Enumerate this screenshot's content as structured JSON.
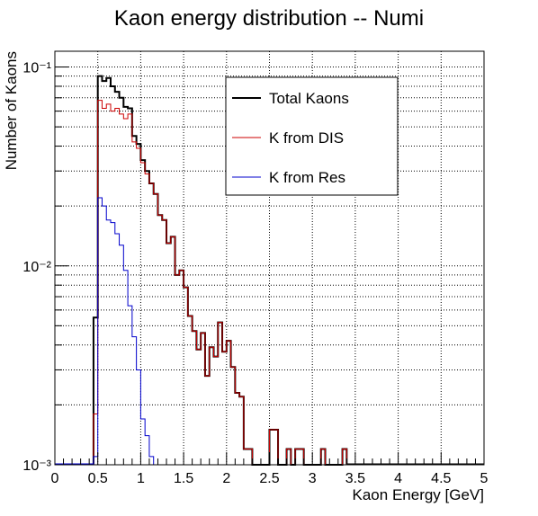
{
  "chart_data": {
    "type": "line",
    "title": "Kaon energy distribution -- Numi",
    "xlabel": "Kaon Energy [GeV]",
    "ylabel": "Number of Kaons",
    "x_scale": "linear",
    "y_scale": "log",
    "xlim": [
      0,
      5
    ],
    "ylim": [
      0.001,
      0.12
    ],
    "grid": true,
    "legend_position": "top-right",
    "x_ticks": [
      "0",
      "0.5",
      "1",
      "1.5",
      "2",
      "2.5",
      "3",
      "3.5",
      "4",
      "4.5",
      "5"
    ],
    "y_tick_labels": {
      "1e-3": "10⁻³",
      "1e-2": "10⁻²",
      "1e-1": "10⁻¹"
    },
    "bin_width": 0.05,
    "series": [
      {
        "name": "Total Kaons",
        "color": "#000000",
        "x": [
          0.45,
          0.5,
          0.55,
          0.6,
          0.65,
          0.7,
          0.75,
          0.8,
          0.85,
          0.9,
          0.95,
          1.0,
          1.05,
          1.1,
          1.15,
          1.2,
          1.25,
          1.3,
          1.35,
          1.4,
          1.45,
          1.5,
          1.55,
          1.6,
          1.65,
          1.7,
          1.75,
          1.8,
          1.85,
          1.9,
          1.95,
          2.0,
          2.05,
          2.1,
          2.15,
          2.2,
          2.25,
          2.3,
          2.35,
          2.4,
          2.45,
          2.5,
          2.55,
          2.6,
          2.65,
          2.7,
          2.75,
          2.8,
          2.85,
          2.9,
          2.95,
          3.0,
          3.05,
          3.1,
          3.15,
          3.2,
          3.25,
          3.3,
          3.35
        ],
        "values": [
          0.0055,
          0.09,
          0.085,
          0.088,
          0.08,
          0.075,
          0.07,
          0.063,
          0.062,
          0.045,
          0.041,
          0.034,
          0.03,
          0.026,
          0.023,
          0.018,
          0.017,
          0.013,
          0.014,
          0.009,
          0.0095,
          0.0078,
          0.0056,
          0.0047,
          0.0038,
          0.0046,
          0.0028,
          0.0039,
          0.0035,
          0.0052,
          0.0037,
          0.0042,
          0.0031,
          0.0023,
          0.0022,
          0.0012,
          0.0012,
          0.001,
          0.001,
          0.001,
          0.001,
          0.0015,
          0.0015,
          0.001,
          0.001,
          0.0012,
          0.001,
          0.0012,
          0.0012,
          0.001,
          0.001,
          0.001,
          0.001,
          0.0012,
          0.001,
          0.001,
          0.001,
          0.001,
          0.0012
        ]
      },
      {
        "name": "K from DIS",
        "color": "#cc0000",
        "x": [
          0.45,
          0.5,
          0.55,
          0.6,
          0.65,
          0.7,
          0.75,
          0.8,
          0.85,
          0.9,
          0.95,
          1.0,
          1.05,
          1.1,
          1.15,
          1.2,
          1.25,
          1.3,
          1.35,
          1.4,
          1.45,
          1.5,
          1.55,
          1.6,
          1.65,
          1.7,
          1.75,
          1.8,
          1.85,
          1.9,
          1.95,
          2.0,
          2.05,
          2.1,
          2.15,
          2.2,
          2.25,
          2.3,
          2.35,
          2.4,
          2.45,
          2.5,
          2.55,
          2.6,
          2.65,
          2.7,
          2.75,
          2.8,
          2.85,
          2.9,
          2.95,
          3.0,
          3.05,
          3.1,
          3.15,
          3.2,
          3.25,
          3.3,
          3.35
        ],
        "values": [
          0.0018,
          0.068,
          0.062,
          0.065,
          0.06,
          0.062,
          0.058,
          0.055,
          0.058,
          0.042,
          0.039,
          0.033,
          0.029,
          0.026,
          0.023,
          0.018,
          0.017,
          0.013,
          0.014,
          0.009,
          0.0095,
          0.0078,
          0.0056,
          0.0047,
          0.0038,
          0.0046,
          0.0028,
          0.0039,
          0.0035,
          0.0052,
          0.0037,
          0.0042,
          0.0031,
          0.0023,
          0.0022,
          0.0012,
          0.0012,
          0.001,
          0.001,
          0.001,
          0.001,
          0.0015,
          0.0015,
          0.001,
          0.001,
          0.0012,
          0.001,
          0.0012,
          0.0012,
          0.001,
          0.001,
          0.001,
          0.001,
          0.0012,
          0.001,
          0.001,
          0.001,
          0.001,
          0.0012
        ]
      },
      {
        "name": "K from Res",
        "color": "#0000cc",
        "x": [
          0.45,
          0.5,
          0.55,
          0.6,
          0.65,
          0.7,
          0.75,
          0.8,
          0.85,
          0.9,
          0.95,
          1.0,
          1.05,
          1.1,
          1.15
        ],
        "values": [
          0.0011,
          0.022,
          0.02,
          0.017,
          0.0165,
          0.0145,
          0.0127,
          0.0095,
          0.0063,
          0.0044,
          0.003,
          0.0017,
          0.0014,
          0.0011,
          0.001
        ]
      }
    ]
  }
}
